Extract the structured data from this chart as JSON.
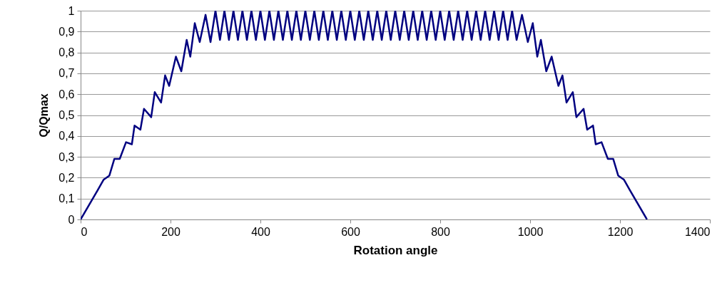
{
  "chart_data": {
    "type": "line",
    "xlabel": "Rotation angle",
    "ylabel": "Q/Qmax",
    "grid": "y",
    "line_style": "solid",
    "marker": "none",
    "xlim": [
      0,
      1400
    ],
    "xticks": [
      0,
      200,
      400,
      600,
      800,
      1000,
      1200,
      1400
    ],
    "ylim": [
      0,
      1
    ],
    "yticks": [
      0,
      {
        "value": 0.1,
        "label": "0,1"
      },
      {
        "value": 0.2,
        "label": "0,2"
      },
      {
        "value": 0.3,
        "label": "0,3"
      },
      {
        "value": 0.4,
        "label": "0,4"
      },
      {
        "value": 0.5,
        "label": "0,5"
      },
      {
        "value": 0.6,
        "label": "0,6"
      },
      {
        "value": 0.7,
        "label": "0,7"
      },
      {
        "value": 0.8,
        "label": "0,8"
      },
      {
        "value": 0.9,
        "label": "0,9"
      },
      1
    ],
    "x": [
      0,
      38,
      51,
      64,
      75,
      87,
      101,
      114,
      120,
      133,
      141,
      157,
      165,
      179,
      188,
      197,
      212,
      224,
      236,
      244,
      254,
      265,
      278,
      289,
      300,
      310,
      320,
      330,
      340,
      350,
      360,
      370,
      380,
      390,
      400,
      410,
      420,
      430,
      440,
      450,
      460,
      470,
      480,
      490,
      500,
      510,
      520,
      530,
      540,
      550,
      560,
      570,
      580,
      590,
      600,
      610,
      620,
      630,
      640,
      650,
      660,
      670,
      680,
      690,
      700,
      710,
      720,
      730,
      740,
      750,
      760,
      770,
      780,
      790,
      800,
      810,
      820,
      830,
      840,
      850,
      860,
      870,
      880,
      890,
      900,
      910,
      920,
      930,
      940,
      950,
      960,
      970,
      982,
      995,
      1006,
      1016,
      1024,
      1036,
      1048,
      1063,
      1072,
      1081,
      1095,
      1103,
      1119,
      1127,
      1140,
      1146,
      1159,
      1173,
      1185,
      1196,
      1209,
      1222,
      1260
    ],
    "series": [
      {
        "color": "#000080",
        "values": [
          0,
          0.14,
          0.19,
          0.21,
          0.29,
          0.29,
          0.37,
          0.36,
          0.45,
          0.43,
          0.53,
          0.49,
          0.61,
          0.56,
          0.69,
          0.64,
          0.78,
          0.71,
          0.86,
          0.78,
          0.94,
          0.85,
          0.98,
          0.85,
          1,
          0.86,
          1,
          0.86,
          1,
          0.86,
          1,
          0.86,
          1,
          0.86,
          1,
          0.86,
          1,
          0.86,
          1,
          0.86,
          1,
          0.86,
          1,
          0.86,
          1,
          0.86,
          1,
          0.86,
          1,
          0.86,
          1,
          0.86,
          1,
          0.86,
          1,
          0.86,
          1,
          0.86,
          1,
          0.86,
          1,
          0.86,
          1,
          0.86,
          1,
          0.86,
          1,
          0.86,
          1,
          0.86,
          1,
          0.86,
          1,
          0.86,
          1,
          0.86,
          1,
          0.86,
          1,
          0.86,
          1,
          0.86,
          1,
          0.86,
          1,
          0.86,
          1,
          0.86,
          1,
          0.86,
          1,
          0.86,
          0.98,
          0.85,
          0.94,
          0.78,
          0.86,
          0.71,
          0.78,
          0.64,
          0.69,
          0.56,
          0.61,
          0.49,
          0.53,
          0.43,
          0.45,
          0.36,
          0.37,
          0.29,
          0.29,
          0.21,
          0.19,
          0.14,
          0
        ]
      }
    ]
  }
}
